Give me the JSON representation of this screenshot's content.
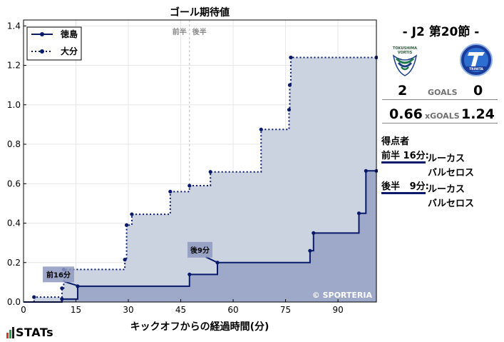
{
  "chart_data": {
    "type": "line",
    "title": "ゴール期待値",
    "xlabel": "キックオフからの経過時間(分)",
    "ylabel": "",
    "xlim": [
      0,
      101
    ],
    "ylim": [
      0,
      1.43
    ],
    "xticks": [
      0,
      15,
      30,
      45,
      60,
      75,
      90
    ],
    "yticks": [
      0.0,
      0.2,
      0.4,
      0.6,
      0.8,
      1.0,
      1.2,
      1.4
    ],
    "halftime_x": 47.5,
    "halftime_labels": [
      "前半",
      "後半"
    ],
    "legend_position": "top-left",
    "watermark": "© SPORTERIA",
    "series": [
      {
        "name": "徳島",
        "style": "solid",
        "color": "#0a1a6b",
        "fill": "#9ea8c8",
        "points": [
          [
            0,
            0
          ],
          [
            11,
            0
          ],
          [
            11,
            0.015
          ],
          [
            15.5,
            0.015
          ],
          [
            15.5,
            0.08
          ],
          [
            47.5,
            0.08
          ],
          [
            47.5,
            0.14
          ],
          [
            55.5,
            0.14
          ],
          [
            55.5,
            0.2
          ],
          [
            82,
            0.2
          ],
          [
            82,
            0.26
          ],
          [
            83,
            0.26
          ],
          [
            83,
            0.35
          ],
          [
            96,
            0.35
          ],
          [
            96,
            0.45
          ],
          [
            98,
            0.45
          ],
          [
            98,
            0.665
          ],
          [
            101,
            0.665
          ]
        ],
        "markers": [
          [
            11,
            0.015
          ],
          [
            15.5,
            0.08
          ],
          [
            47.5,
            0.14
          ],
          [
            55.5,
            0.2
          ],
          [
            82,
            0.26
          ],
          [
            83,
            0.35
          ],
          [
            96,
            0.45
          ],
          [
            98,
            0.665
          ],
          [
            101,
            0.665
          ]
        ]
      },
      {
        "name": "大分",
        "style": "dotted",
        "color": "#0a1a6b",
        "fill": "#cbd3e1",
        "points": [
          [
            0,
            0
          ],
          [
            3,
            0
          ],
          [
            3,
            0.025
          ],
          [
            11,
            0.025
          ],
          [
            11,
            0.07
          ],
          [
            11.5,
            0.07
          ],
          [
            11.5,
            0.165
          ],
          [
            29,
            0.165
          ],
          [
            29,
            0.215
          ],
          [
            29.5,
            0.215
          ],
          [
            29.5,
            0.39
          ],
          [
            31,
            0.39
          ],
          [
            31,
            0.445
          ],
          [
            42,
            0.445
          ],
          [
            42,
            0.56
          ],
          [
            47.5,
            0.56
          ],
          [
            47.5,
            0.59
          ],
          [
            53.5,
            0.59
          ],
          [
            53.5,
            0.66
          ],
          [
            68,
            0.66
          ],
          [
            68,
            0.875
          ],
          [
            76,
            0.875
          ],
          [
            76,
            0.975
          ],
          [
            76.2,
            0.975
          ],
          [
            76.2,
            1.1
          ],
          [
            76.5,
            1.1
          ],
          [
            76.5,
            1.24
          ],
          [
            101,
            1.24
          ]
        ],
        "markers": [
          [
            3,
            0.025
          ],
          [
            11,
            0.07
          ],
          [
            11.5,
            0.165
          ],
          [
            29,
            0.215
          ],
          [
            29.5,
            0.39
          ],
          [
            31,
            0.445
          ],
          [
            42,
            0.56
          ],
          [
            47.5,
            0.59
          ],
          [
            53.5,
            0.66
          ],
          [
            68,
            0.875
          ],
          [
            76,
            0.975
          ],
          [
            76.2,
            1.1
          ],
          [
            76.5,
            1.24
          ],
          [
            101,
            1.24
          ]
        ]
      }
    ],
    "annotations": [
      {
        "text": "前16分",
        "x": 16,
        "y": 0.08,
        "label_x": 10,
        "label_y": 0.14
      },
      {
        "text": "後9分",
        "x": 55.5,
        "y": 0.2,
        "label_x": 50.5,
        "label_y": 0.265
      }
    ]
  },
  "panel": {
    "match_title": "- J2 第20節 -",
    "home_crest_text": "TOKUSHIMA VORTIS",
    "away_crest_text": "TRINITA",
    "goals_home": "2",
    "goals_label": "GOALS",
    "goals_away": "0",
    "xg_home": "0.66",
    "xg_label": "xGOALS",
    "xg_away": "1.24",
    "scorers_heading": "得点者",
    "goals": [
      {
        "when": "前半 16分",
        "name": "ルーカス",
        "name2": "バルセロス"
      },
      {
        "when": "後半   9分",
        "name": "ルーカス",
        "name2": "バルセロス"
      }
    ]
  },
  "brand": {
    "logo_text": "STATs"
  }
}
